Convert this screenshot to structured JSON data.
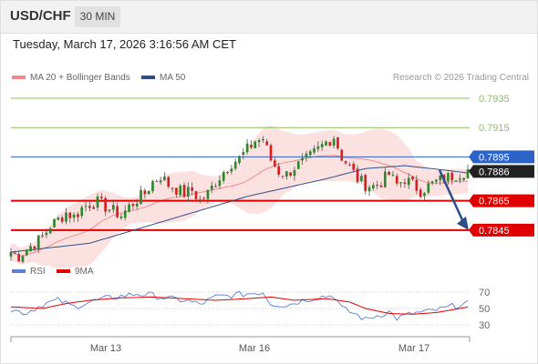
{
  "header": {
    "symbol": "USD/CHF",
    "timeframe": "30 MIN",
    "datetime": "Tuesday, March 17, 2026 3:16:56 AM CET"
  },
  "legend": {
    "ma20_label": "MA 20 + Bollinger Bands",
    "ma50_label": "MA 50",
    "rsi_label": "RSI",
    "rsi_ma_label": "9MA",
    "credit": "Research © 2026 Trading Central"
  },
  "colors": {
    "bull": "#2a8a2a",
    "bear": "#d62020",
    "ma20": "#f08a8a",
    "bollinger_fill": "#fcdcdc",
    "ma50": "#2c4f8c",
    "resistance": "#88c060",
    "current_level": "#2b63c9",
    "support": "#e00000",
    "current_price_box": "#222222",
    "rsi": "#5b7fd6",
    "rsi_ma": "#e00000"
  },
  "chart_data": [
    {
      "type": "candlestick",
      "ylim": [
        0.7825,
        0.794
      ],
      "x_ticks": [
        "Mar 13",
        "Mar 16",
        "Mar 17"
      ],
      "current_price": "0.7886",
      "levels": [
        {
          "value": 0.7935,
          "label": "0.7935",
          "kind": "resistance"
        },
        {
          "value": 0.7915,
          "label": "0.7915",
          "kind": "resistance"
        },
        {
          "value": 0.7895,
          "label": "0.7895",
          "kind": "pivot"
        },
        {
          "value": 0.7865,
          "label": "0.7865",
          "kind": "support"
        },
        {
          "value": 0.7845,
          "label": "0.7845",
          "kind": "support"
        }
      ],
      "forecast": {
        "from": 0.7886,
        "to": 0.7845,
        "direction": "down"
      },
      "close_path": [
        [
          0,
          0.783
        ],
        [
          2,
          0.7827
        ],
        [
          4,
          0.7832
        ],
        [
          6,
          0.7836
        ],
        [
          8,
          0.784
        ],
        [
          10,
          0.7848
        ],
        [
          12,
          0.7852
        ],
        [
          14,
          0.7857
        ],
        [
          16,
          0.7854
        ],
        [
          18,
          0.786
        ],
        [
          20,
          0.7863
        ],
        [
          22,
          0.7864
        ],
        [
          24,
          0.7861
        ],
        [
          26,
          0.7858
        ],
        [
          28,
          0.7855
        ],
        [
          30,
          0.7861
        ],
        [
          32,
          0.7866
        ],
        [
          34,
          0.787
        ],
        [
          36,
          0.7878
        ],
        [
          38,
          0.7882
        ],
        [
          40,
          0.7876
        ],
        [
          42,
          0.7873
        ],
        [
          44,
          0.787
        ],
        [
          46,
          0.7872
        ],
        [
          48,
          0.7865
        ],
        [
          50,
          0.787
        ],
        [
          52,
          0.7878
        ],
        [
          54,
          0.7885
        ],
        [
          56,
          0.7891
        ],
        [
          58,
          0.7894
        ],
        [
          60,
          0.79
        ],
        [
          62,
          0.7906
        ],
        [
          64,
          0.7907
        ],
        [
          66,
          0.7893
        ],
        [
          68,
          0.7885
        ],
        [
          70,
          0.7883
        ],
        [
          72,
          0.7888
        ],
        [
          74,
          0.7891
        ],
        [
          76,
          0.7895
        ],
        [
          78,
          0.79
        ],
        [
          80,
          0.7905
        ],
        [
          82,
          0.7909
        ],
        [
          84,
          0.7895
        ],
        [
          86,
          0.7888
        ],
        [
          88,
          0.788
        ],
        [
          90,
          0.7876
        ],
        [
          92,
          0.7875
        ],
        [
          94,
          0.7878
        ],
        [
          96,
          0.7883
        ],
        [
          98,
          0.7876
        ],
        [
          100,
          0.788
        ],
        [
          102,
          0.7876
        ],
        [
          104,
          0.7872
        ],
        [
          106,
          0.7875
        ],
        [
          108,
          0.7878
        ],
        [
          110,
          0.788
        ],
        [
          112,
          0.7882
        ],
        [
          114,
          0.7884
        ],
        [
          116,
          0.7886
        ]
      ],
      "ma50_path": [
        [
          0,
          0.783
        ],
        [
          20,
          0.7836
        ],
        [
          40,
          0.7852
        ],
        [
          60,
          0.7868
        ],
        [
          80,
          0.788
        ],
        [
          90,
          0.7887
        ],
        [
          100,
          0.7889
        ],
        [
          110,
          0.7886
        ],
        [
          116,
          0.7884
        ]
      ]
    },
    {
      "type": "line",
      "name": "RSI",
      "ylim": [
        20,
        80
      ],
      "y_ticks": [
        70,
        50,
        30
      ],
      "series": [
        {
          "name": "RSI",
          "points": [
            [
              0,
              48
            ],
            [
              4,
              45
            ],
            [
              8,
              55
            ],
            [
              12,
              60
            ],
            [
              16,
              52
            ],
            [
              20,
              58
            ],
            [
              24,
              62
            ],
            [
              28,
              65
            ],
            [
              32,
              68
            ],
            [
              36,
              66
            ],
            [
              40,
              62
            ],
            [
              44,
              60
            ],
            [
              48,
              55
            ],
            [
              52,
              64
            ],
            [
              56,
              66
            ],
            [
              60,
              68
            ],
            [
              64,
              70
            ],
            [
              66,
              56
            ],
            [
              70,
              54
            ],
            [
              74,
              60
            ],
            [
              78,
              64
            ],
            [
              82,
              66
            ],
            [
              84,
              50
            ],
            [
              88,
              42
            ],
            [
              90,
              36
            ],
            [
              92,
              40
            ],
            [
              96,
              46
            ],
            [
              98,
              38
            ],
            [
              102,
              44
            ],
            [
              106,
              46
            ],
            [
              110,
              50
            ],
            [
              114,
              55
            ],
            [
              116,
              56
            ]
          ]
        },
        {
          "name": "9MA",
          "points": [
            [
              0,
              52
            ],
            [
              8,
              50
            ],
            [
              14,
              56
            ],
            [
              20,
              60
            ],
            [
              28,
              63
            ],
            [
              36,
              64
            ],
            [
              44,
              62
            ],
            [
              52,
              60
            ],
            [
              60,
              62
            ],
            [
              66,
              64
            ],
            [
              72,
              60
            ],
            [
              80,
              62
            ],
            [
              86,
              58
            ],
            [
              90,
              50
            ],
            [
              96,
              44
            ],
            [
              102,
              43
            ],
            [
              108,
              45
            ],
            [
              114,
              50
            ],
            [
              116,
              52
            ]
          ]
        }
      ]
    }
  ]
}
